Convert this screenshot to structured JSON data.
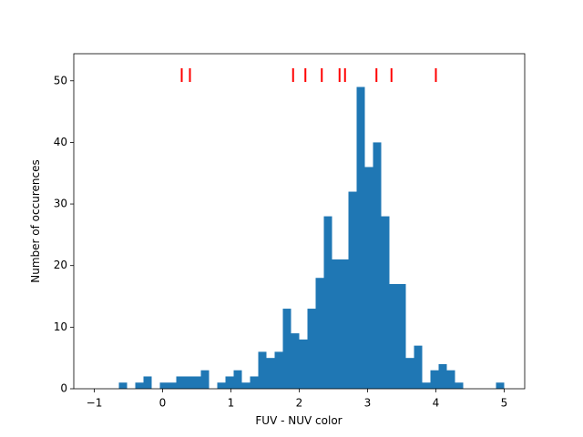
{
  "chart_data": {
    "type": "histogram",
    "x_label": "FUV - NUV color",
    "y_label": "Number of occurences",
    "bins": [
      -1,
      -0.88,
      -0.76,
      -0.64,
      -0.52,
      -0.4,
      -0.28,
      -0.16,
      -0.04,
      0.08,
      0.2,
      0.32,
      0.44,
      0.56,
      0.68,
      0.8,
      0.92,
      1.04,
      1.16,
      1.28,
      1.4,
      1.52,
      1.64,
      1.76,
      1.88,
      2.0,
      2.12,
      2.24,
      2.36,
      2.48,
      2.6,
      2.72,
      2.84,
      2.96,
      3.08,
      3.2,
      3.32,
      3.44,
      3.56,
      3.68,
      3.8,
      3.92,
      4.04,
      4.16,
      4.28,
      4.4,
      4.52,
      4.64,
      4.76,
      4.88,
      5.0
    ],
    "values": [
      0,
      0,
      0,
      1,
      0,
      1,
      2,
      0,
      1,
      1,
      2,
      2,
      2,
      3,
      0,
      1,
      2,
      3,
      1,
      2,
      6,
      5,
      6,
      13,
      9,
      8,
      13,
      18,
      28,
      21,
      21,
      32,
      49,
      36,
      40,
      28,
      17,
      17,
      5,
      7,
      1,
      3,
      4,
      3,
      1,
      0,
      0,
      0,
      0,
      1
    ],
    "color": "#1f77b4",
    "rug": {
      "x": [
        0.28,
        0.4,
        1.91,
        2.09,
        2.33,
        2.59,
        2.67,
        3.13,
        3.35,
        4.0
      ],
      "color": "#ff0000"
    },
    "xlim": [
      -1.3,
      5.3
    ],
    "ylim": [
      0,
      54.4
    ],
    "xticks": [
      {
        "value": -1,
        "label": "−1"
      },
      0,
      1,
      2,
      3,
      4,
      5
    ],
    "yticks": [
      0,
      10,
      20,
      30,
      40,
      50
    ]
  }
}
